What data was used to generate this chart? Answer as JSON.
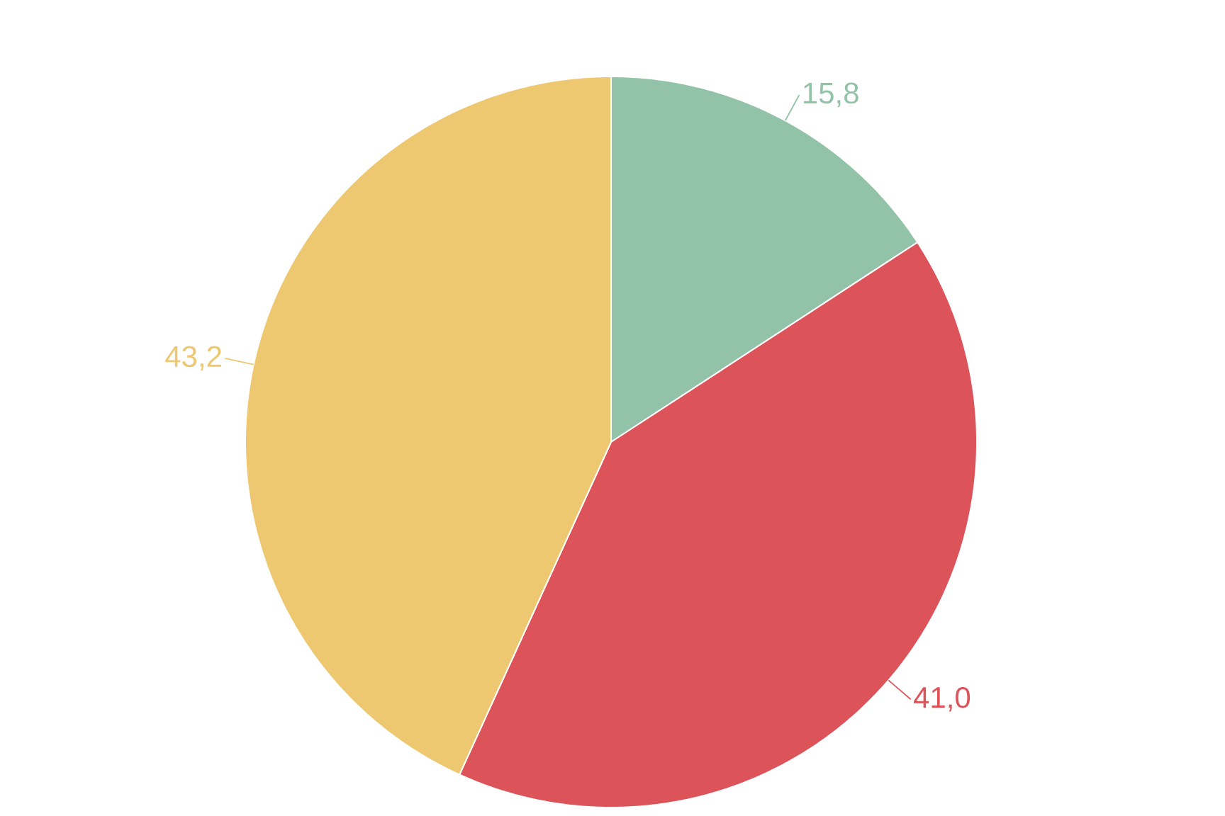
{
  "chart_data": {
    "type": "pie",
    "categories": [
      null,
      null,
      null
    ],
    "values": [
      15.8,
      41.0,
      43.2
    ],
    "colors": [
      "#92c3a8",
      "#dc535a",
      "#eec870"
    ],
    "value_labels": [
      "15,8",
      "41,0",
      "43,2"
    ]
  }
}
